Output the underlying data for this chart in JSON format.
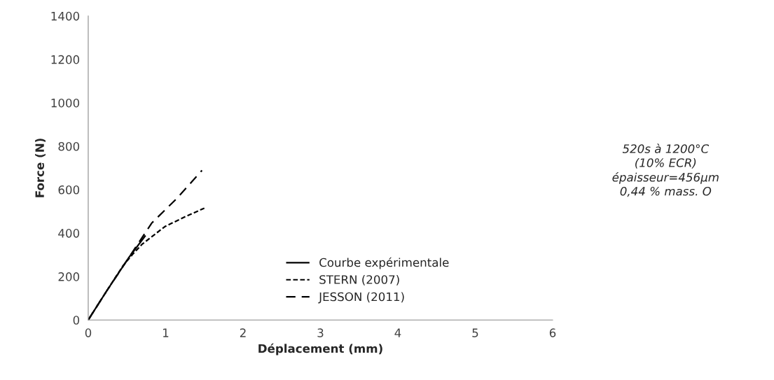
{
  "chart_data": {
    "type": "line",
    "xlabel": "Déplacement (mm)",
    "ylabel": "Force (N)",
    "xlim": [
      0,
      6
    ],
    "xticks": [
      0,
      1,
      2,
      3,
      4,
      5,
      6
    ],
    "ylim": [
      0,
      1400
    ],
    "yticks": [
      0,
      200,
      400,
      600,
      800,
      1000,
      1200,
      1400
    ],
    "grid": false,
    "legend": "bottom right",
    "marker": "none",
    "series": [
      {
        "name": "Courbe expérimentale",
        "color": "#000000",
        "line_style": "solid",
        "x": [
          0,
          0.25,
          0.53,
          0.74
        ],
        "values": [
          0,
          140,
          290,
          389
        ]
      },
      {
        "name": "STERN (2007)",
        "color": "#000000",
        "line_style": "dotted",
        "x": [
          0,
          0.25,
          0.45,
          0.57,
          0.7,
          0.99,
          1.25,
          1.5
        ],
        "values": [
          0,
          140,
          250,
          301,
          350,
          430,
          475,
          515
        ]
      },
      {
        "name": "JESSON (2011)",
        "color": "#000000",
        "line_style": "dashed",
        "x": [
          0,
          0.25,
          0.53,
          0.73,
          0.82,
          1.14,
          1.47
        ],
        "values": [
          0,
          140,
          290,
          398,
          446,
          558,
          689
        ]
      }
    ],
    "annotations": [
      "520s à 1200°C\n(10% ECR)\népaisseur=456µm\n0,44 % mass. O"
    ]
  }
}
